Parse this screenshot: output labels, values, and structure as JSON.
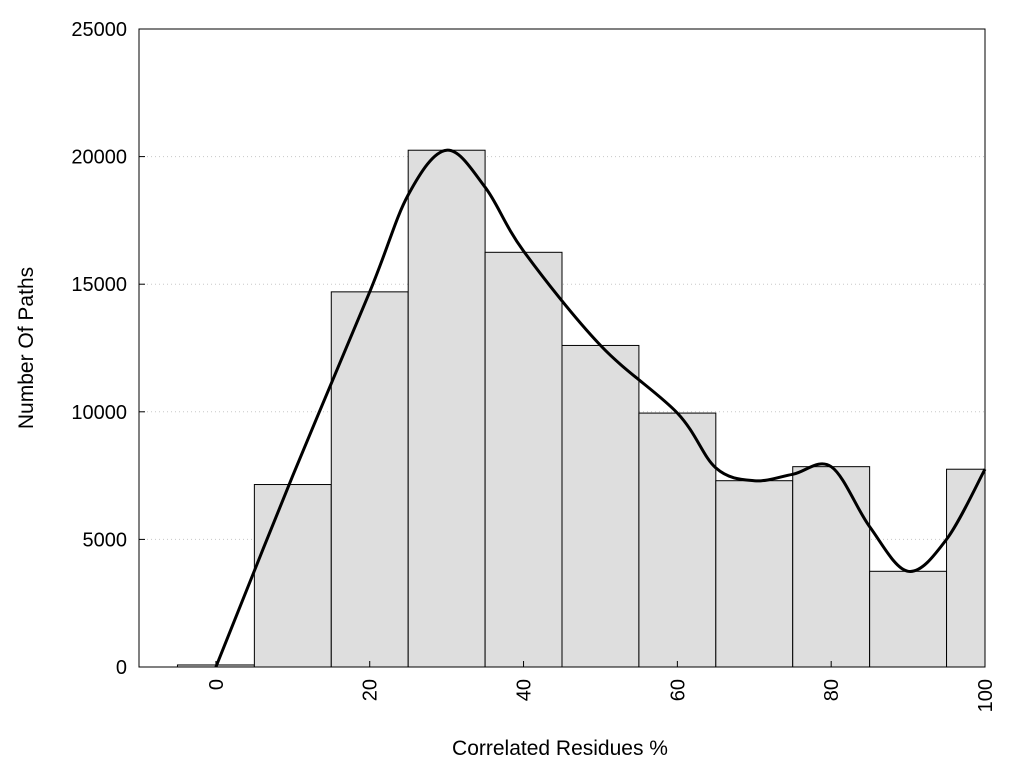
{
  "chart_data": {
    "type": "bar",
    "xlabel": "Correlated Residues %",
    "ylabel": "Number Of Paths",
    "xlim": [
      -10,
      100
    ],
    "ylim": [
      0,
      25000
    ],
    "x_ticks": [
      "0",
      "20",
      "40",
      "60",
      "80",
      "100"
    ],
    "y_ticks": [
      "0",
      "5000",
      "10000",
      "15000",
      "20000",
      "25000"
    ],
    "grid": "horizontal dotted",
    "bar_color": "#dedede",
    "bins": [
      {
        "from": -5,
        "to": 5,
        "value": 80
      },
      {
        "from": 5,
        "to": 15,
        "value": 7150
      },
      {
        "from": 15,
        "to": 25,
        "value": 14700
      },
      {
        "from": 25,
        "to": 35,
        "value": 20250
      },
      {
        "from": 35,
        "to": 45,
        "value": 16250
      },
      {
        "from": 45,
        "to": 55,
        "value": 12600
      },
      {
        "from": 55,
        "to": 65,
        "value": 9950
      },
      {
        "from": 65,
        "to": 75,
        "value": 7300
      },
      {
        "from": 75,
        "to": 85,
        "value": 7850
      },
      {
        "from": 85,
        "to": 95,
        "value": 3750
      },
      {
        "from": 95,
        "to": 105,
        "value": 7750
      }
    ],
    "curve": {
      "x": [
        0,
        10,
        20,
        25,
        30,
        35,
        40,
        50,
        60,
        65,
        70,
        75,
        80,
        85,
        90,
        95,
        100
      ],
      "y": [
        0,
        7500,
        14700,
        18500,
        20250,
        18800,
        16300,
        12600,
        9950,
        7800,
        7300,
        7550,
        7850,
        5500,
        3750,
        5000,
        7750
      ]
    }
  }
}
